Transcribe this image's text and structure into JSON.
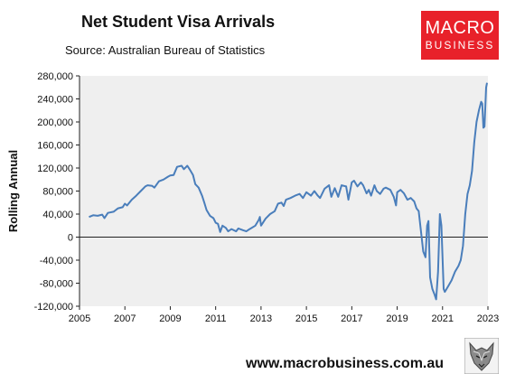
{
  "header": {
    "title": "Net Student Visa Arrivals",
    "source": "Source: Australian Bureau of Statistics"
  },
  "logo": {
    "line1": "MACRO",
    "line2": "BUSINESS"
  },
  "footer": {
    "website": "www.macrobusiness.com.au"
  },
  "colors": {
    "line": "#4a7ebb",
    "plot_bg": "#efefef",
    "logo_bg": "#e8212a"
  },
  "chart_data": {
    "type": "line",
    "title": "Net Student Visa Arrivals",
    "subtitle": "Source: Australian Bureau of Statistics",
    "ylabel": "Rolling Annual",
    "xlabel": "",
    "ylim": [
      -120000,
      280000
    ],
    "xlim": [
      2005,
      2023
    ],
    "y_ticks": [
      "280,000",
      "240,000",
      "200,000",
      "160,000",
      "120,000",
      "80,000",
      "40,000",
      "0",
      "-40,000",
      "-80,000",
      "-120,000"
    ],
    "y_tick_values": [
      280000,
      240000,
      200000,
      160000,
      120000,
      80000,
      40000,
      0,
      -40000,
      -80000,
      -120000
    ],
    "x_ticks": [
      "2005",
      "2007",
      "2009",
      "2011",
      "2013",
      "2015",
      "2017",
      "2019",
      "2021",
      "2023"
    ],
    "x_tick_values": [
      2005,
      2007,
      2009,
      2011,
      2013,
      2015,
      2017,
      2019,
      2021,
      2023
    ],
    "grid": false,
    "series": [
      {
        "color": "#4a7ebb",
        "points": [
          [
            2005.42,
            35000
          ],
          [
            2005.6,
            38000
          ],
          [
            2005.8,
            37000
          ],
          [
            2006.0,
            39000
          ],
          [
            2006.1,
            33000
          ],
          [
            2006.25,
            42000
          ],
          [
            2006.5,
            44000
          ],
          [
            2006.7,
            50000
          ],
          [
            2006.9,
            52000
          ],
          [
            2007.0,
            58000
          ],
          [
            2007.1,
            55000
          ],
          [
            2007.3,
            65000
          ],
          [
            2007.5,
            72000
          ],
          [
            2007.7,
            80000
          ],
          [
            2007.9,
            88000
          ],
          [
            2008.0,
            90000
          ],
          [
            2008.2,
            89000
          ],
          [
            2008.3,
            86000
          ],
          [
            2008.5,
            97000
          ],
          [
            2008.7,
            100000
          ],
          [
            2008.9,
            105000
          ],
          [
            2009.0,
            107000
          ],
          [
            2009.15,
            108000
          ],
          [
            2009.3,
            122000
          ],
          [
            2009.5,
            124000
          ],
          [
            2009.6,
            118000
          ],
          [
            2009.75,
            124000
          ],
          [
            2009.85,
            118000
          ],
          [
            2010.0,
            108000
          ],
          [
            2010.1,
            92000
          ],
          [
            2010.25,
            86000
          ],
          [
            2010.4,
            72000
          ],
          [
            2010.5,
            60000
          ],
          [
            2010.6,
            47000
          ],
          [
            2010.75,
            37000
          ],
          [
            2010.9,
            33000
          ],
          [
            2011.0,
            25000
          ],
          [
            2011.1,
            23000
          ],
          [
            2011.2,
            9000
          ],
          [
            2011.3,
            20000
          ],
          [
            2011.45,
            16000
          ],
          [
            2011.55,
            10000
          ],
          [
            2011.7,
            14000
          ],
          [
            2011.9,
            10000
          ],
          [
            2012.0,
            15000
          ],
          [
            2012.2,
            12000
          ],
          [
            2012.35,
            10000
          ],
          [
            2012.5,
            14000
          ],
          [
            2012.75,
            20000
          ],
          [
            2012.9,
            30000
          ],
          [
            2012.95,
            35000
          ],
          [
            2013.0,
            20000
          ],
          [
            2013.2,
            32000
          ],
          [
            2013.4,
            40000
          ],
          [
            2013.6,
            45000
          ],
          [
            2013.75,
            58000
          ],
          [
            2013.9,
            60000
          ],
          [
            2014.0,
            54000
          ],
          [
            2014.1,
            65000
          ],
          [
            2014.3,
            68000
          ],
          [
            2014.5,
            72000
          ],
          [
            2014.7,
            75000
          ],
          [
            2014.85,
            68000
          ],
          [
            2015.0,
            78000
          ],
          [
            2015.2,
            72000
          ],
          [
            2015.35,
            80000
          ],
          [
            2015.5,
            72000
          ],
          [
            2015.6,
            68000
          ],
          [
            2015.8,
            84000
          ],
          [
            2016.0,
            90000
          ],
          [
            2016.1,
            70000
          ],
          [
            2016.25,
            85000
          ],
          [
            2016.4,
            70000
          ],
          [
            2016.55,
            90000
          ],
          [
            2016.75,
            88000
          ],
          [
            2016.85,
            65000
          ],
          [
            2017.0,
            95000
          ],
          [
            2017.1,
            98000
          ],
          [
            2017.25,
            88000
          ],
          [
            2017.4,
            95000
          ],
          [
            2017.5,
            90000
          ],
          [
            2017.65,
            76000
          ],
          [
            2017.75,
            82000
          ],
          [
            2017.85,
            72000
          ],
          [
            2018.0,
            90000
          ],
          [
            2018.1,
            80000
          ],
          [
            2018.25,
            75000
          ],
          [
            2018.4,
            84000
          ],
          [
            2018.5,
            86000
          ],
          [
            2018.7,
            82000
          ],
          [
            2018.85,
            70000
          ],
          [
            2018.95,
            55000
          ],
          [
            2019.0,
            78000
          ],
          [
            2019.15,
            82000
          ],
          [
            2019.3,
            76000
          ],
          [
            2019.45,
            65000
          ],
          [
            2019.6,
            68000
          ],
          [
            2019.75,
            62000
          ],
          [
            2019.85,
            50000
          ],
          [
            2019.95,
            45000
          ],
          [
            2020.05,
            10000
          ],
          [
            2020.15,
            -25000
          ],
          [
            2020.25,
            -35000
          ],
          [
            2020.32,
            20000
          ],
          [
            2020.38,
            28000
          ],
          [
            2020.45,
            -70000
          ],
          [
            2020.55,
            -90000
          ],
          [
            2020.65,
            -100000
          ],
          [
            2020.72,
            -108000
          ],
          [
            2020.8,
            -60000
          ],
          [
            2020.88,
            40000
          ],
          [
            2020.95,
            20000
          ],
          [
            2021.05,
            -90000
          ],
          [
            2021.1,
            -95000
          ],
          [
            2021.25,
            -85000
          ],
          [
            2021.4,
            -75000
          ],
          [
            2021.55,
            -60000
          ],
          [
            2021.7,
            -50000
          ],
          [
            2021.8,
            -40000
          ],
          [
            2021.9,
            -15000
          ],
          [
            2022.0,
            40000
          ],
          [
            2022.1,
            75000
          ],
          [
            2022.2,
            90000
          ],
          [
            2022.3,
            115000
          ],
          [
            2022.4,
            165000
          ],
          [
            2022.5,
            200000
          ],
          [
            2022.6,
            220000
          ],
          [
            2022.7,
            235000
          ],
          [
            2022.75,
            232000
          ],
          [
            2022.8,
            190000
          ],
          [
            2022.85,
            192000
          ],
          [
            2022.92,
            260000
          ],
          [
            2022.96,
            268000
          ]
        ]
      }
    ]
  }
}
